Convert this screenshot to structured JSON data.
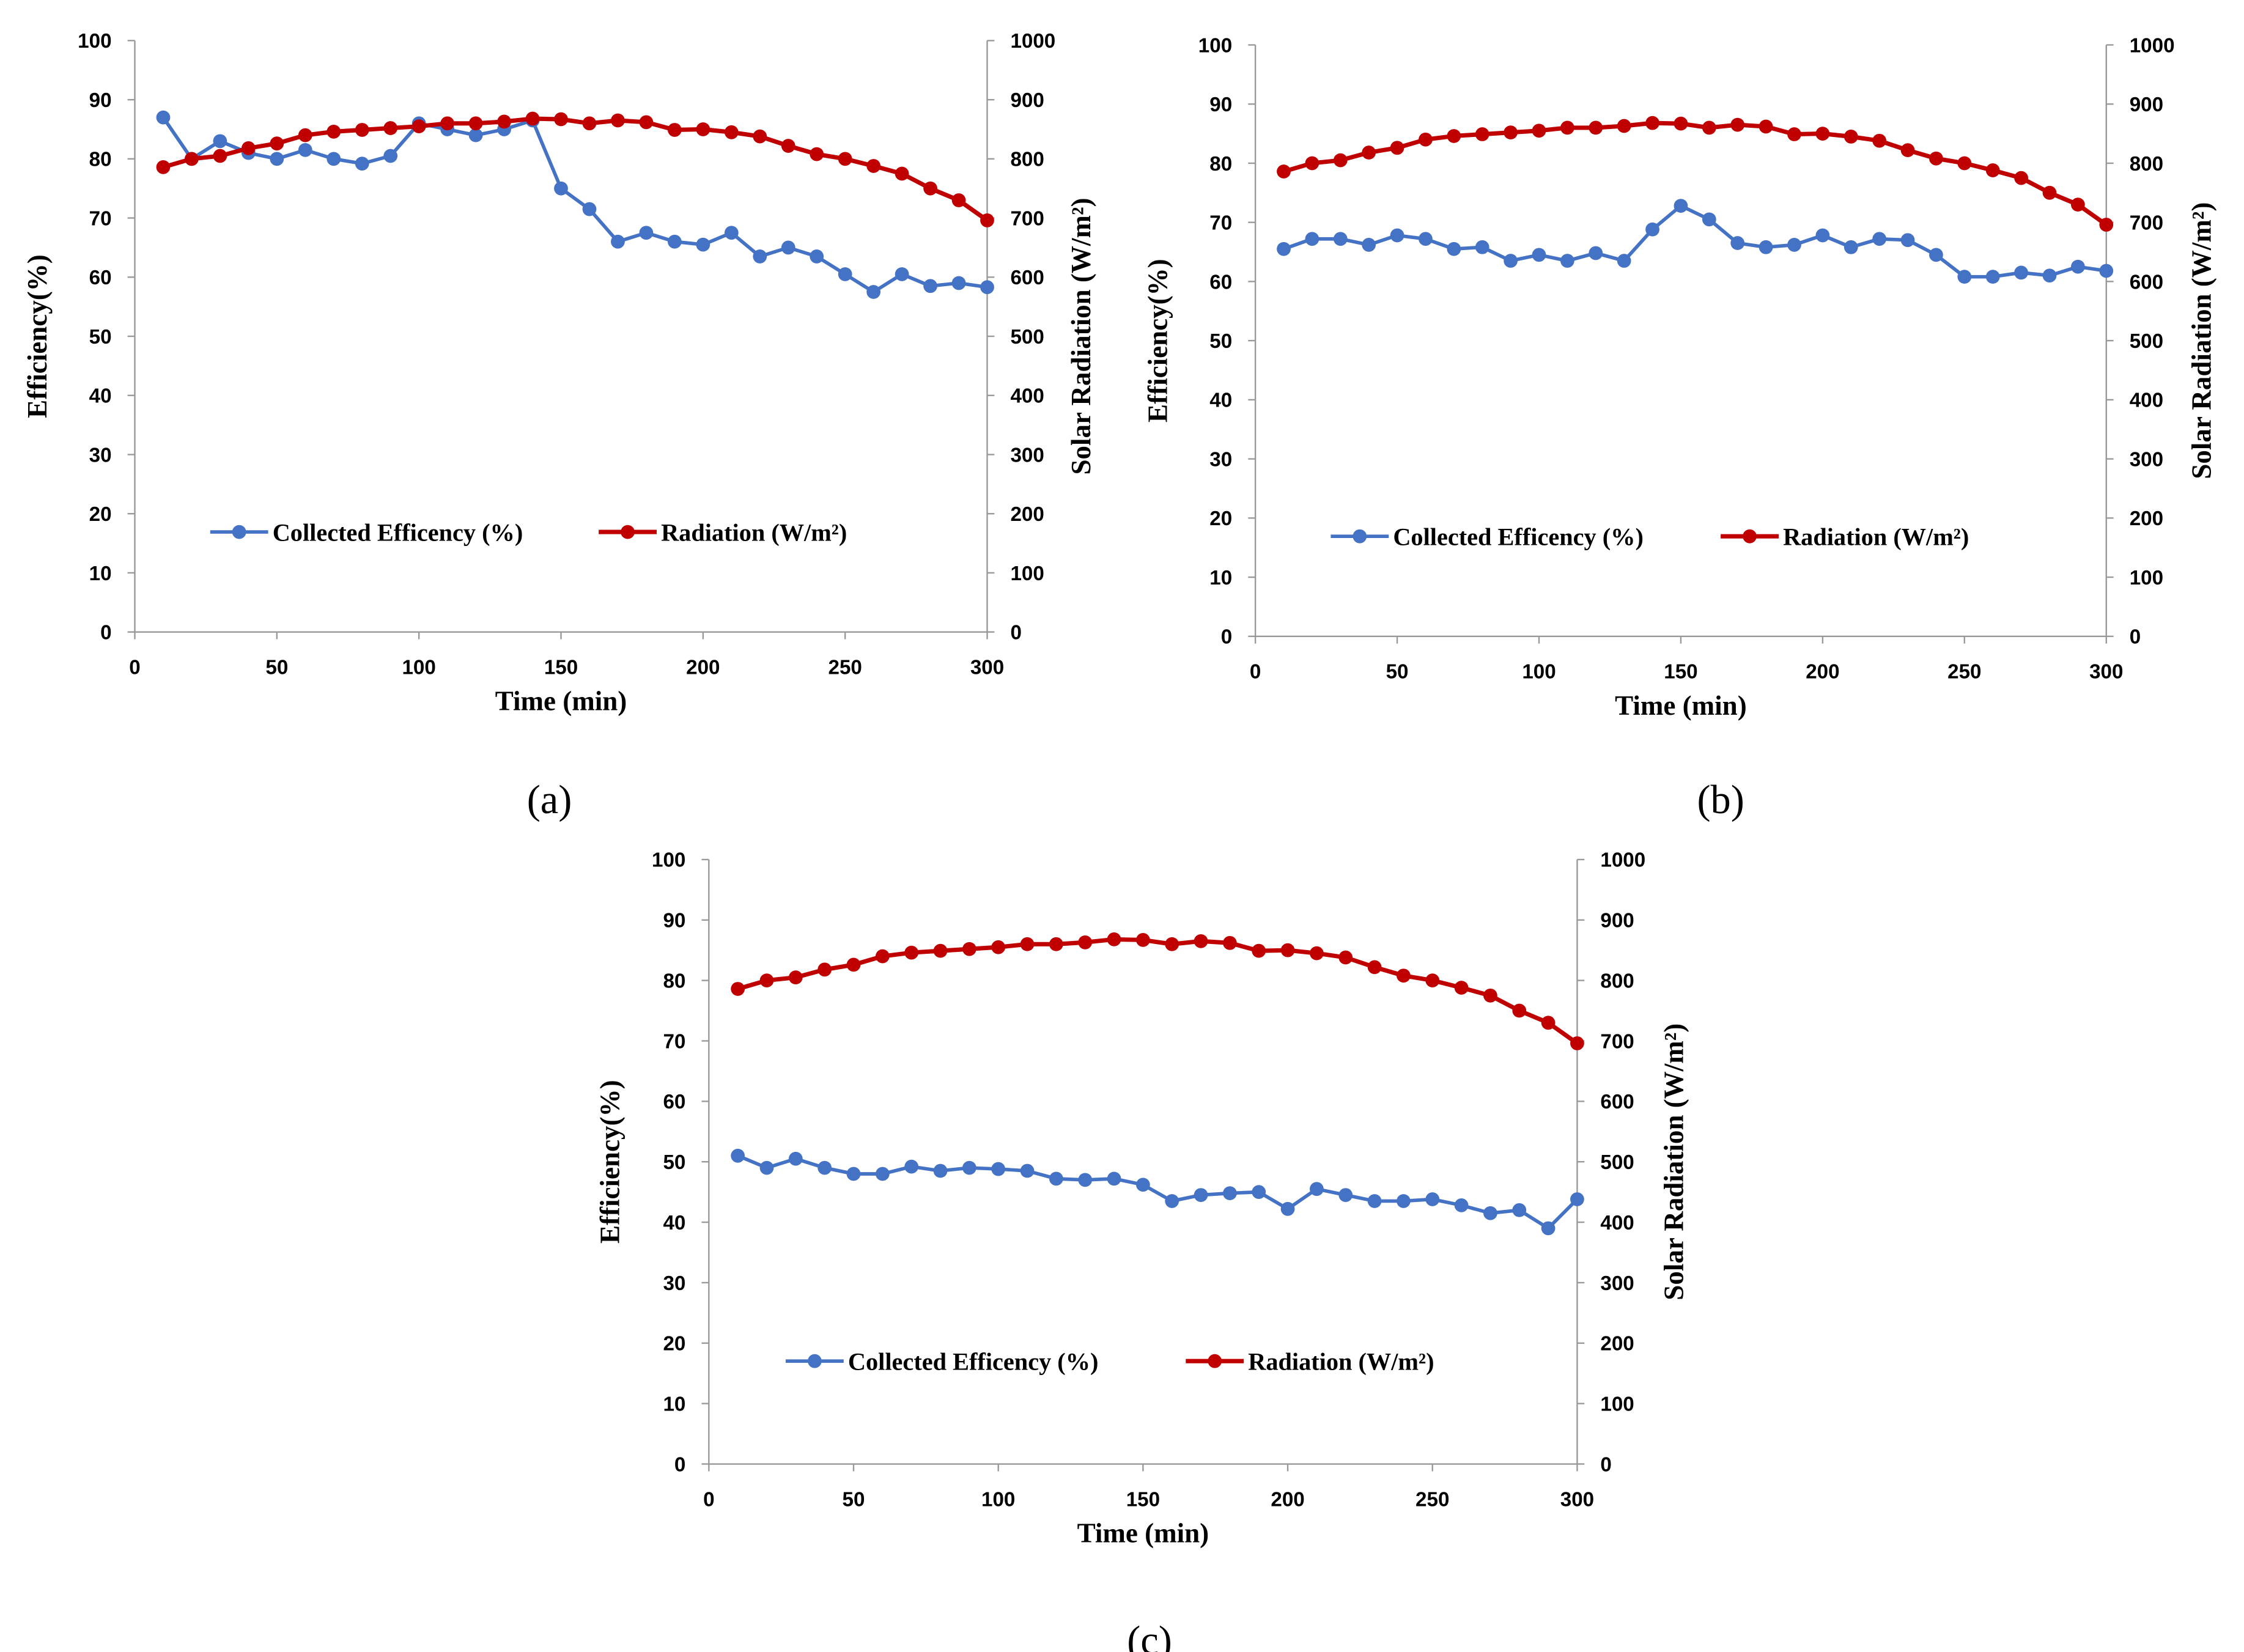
{
  "colors": {
    "efficiency": "#4472C4",
    "radiation": "#C00000",
    "axis": "#999999",
    "text": "#000000"
  },
  "chart_data": [
    {
      "type": "line",
      "panel_label": "(a)",
      "xlabel": "Time (min)",
      "ylabel_left": "Efficiency(%)",
      "ylabel_right": "Solar Radiation (W/m²)",
      "xlim": [
        0,
        300
      ],
      "ylim_left": [
        0,
        100
      ],
      "ylim_right": [
        0,
        1000
      ],
      "x_ticks": [
        "0",
        "50",
        "100",
        "150",
        "200",
        "250",
        "300"
      ],
      "y_left_ticks": [
        "0",
        "10",
        "20",
        "30",
        "40",
        "50",
        "60",
        "70",
        "80",
        "90",
        "100"
      ],
      "y_right_ticks": [
        "0",
        "100",
        "200",
        "300",
        "400",
        "500",
        "600",
        "700",
        "800",
        "900",
        "1000"
      ],
      "legend_position": "center-left",
      "x": [
        10,
        20,
        30,
        40,
        50,
        60,
        70,
        80,
        90,
        100,
        110,
        120,
        130,
        140,
        150,
        160,
        170,
        180,
        190,
        200,
        210,
        220,
        230,
        240,
        250,
        260,
        270,
        280,
        290,
        300
      ],
      "series": [
        {
          "name": "Collected Efficency (%)",
          "axis": "left",
          "values": [
            87,
            80,
            83,
            81,
            80,
            81.5,
            80,
            79.2,
            80.5,
            86,
            85,
            84,
            85,
            86.5,
            75,
            71.5,
            66,
            67.5,
            66,
            65.5,
            67.5,
            63.5,
            65,
            63.5,
            60.5,
            57.5,
            60.5,
            58.5,
            59,
            58.3
          ]
        },
        {
          "name": "Radiation (W/m²)",
          "axis": "right",
          "values": [
            786,
            800,
            805,
            818,
            826,
            840,
            846,
            849,
            852,
            855,
            860,
            860,
            863,
            868,
            867,
            860,
            865,
            862,
            849,
            850,
            845,
            838,
            822,
            808,
            800,
            788,
            775,
            750,
            730,
            696
          ]
        }
      ]
    },
    {
      "type": "line",
      "panel_label": "(b)",
      "xlabel": "Time (min)",
      "ylabel_left": "Efficiency(%)",
      "ylabel_right": "Solar Radiation (W/m²)",
      "xlim": [
        0,
        300
      ],
      "ylim_left": [
        0,
        100
      ],
      "ylim_right": [
        0,
        1000
      ],
      "x_ticks": [
        "0",
        "50",
        "100",
        "150",
        "200",
        "250",
        "300"
      ],
      "y_left_ticks": [
        "0",
        "10",
        "20",
        "30",
        "40",
        "50",
        "60",
        "70",
        "80",
        "90",
        "100"
      ],
      "y_right_ticks": [
        "0",
        "100",
        "200",
        "300",
        "400",
        "500",
        "600",
        "700",
        "800",
        "900",
        "1000"
      ],
      "legend_position": "center-left",
      "x": [
        10,
        20,
        30,
        40,
        50,
        60,
        70,
        80,
        90,
        100,
        110,
        120,
        130,
        140,
        150,
        160,
        170,
        180,
        190,
        200,
        210,
        220,
        230,
        240,
        250,
        260,
        270,
        280,
        290,
        300
      ],
      "series": [
        {
          "name": "Collected Efficency (%)",
          "axis": "left",
          "values": [
            65.5,
            67.2,
            67.2,
            66.2,
            67.8,
            67.2,
            65.5,
            65.8,
            63.5,
            64.5,
            63.5,
            64.8,
            63.5,
            68.8,
            72.8,
            70.5,
            66.5,
            65.8,
            66.2,
            67.8,
            65.8,
            67.2,
            67,
            64.5,
            60.8,
            60.8,
            61.5,
            61,
            62.5,
            61.8
          ]
        },
        {
          "name": "Radiation (W/m²)",
          "axis": "right",
          "values": [
            786,
            800,
            805,
            818,
            826,
            840,
            846,
            849,
            852,
            855,
            860,
            860,
            863,
            868,
            867,
            860,
            865,
            862,
            849,
            850,
            845,
            838,
            822,
            808,
            800,
            788,
            775,
            750,
            730,
            696
          ]
        }
      ]
    },
    {
      "type": "line",
      "panel_label": "(c)",
      "xlabel": "Time (min)",
      "ylabel_left": "Efficiency(%)",
      "ylabel_right": "Solar Radiation (W/m²)",
      "xlim": [
        0,
        300
      ],
      "ylim_left": [
        0,
        100
      ],
      "ylim_right": [
        0,
        1000
      ],
      "x_ticks": [
        "0",
        "50",
        "100",
        "150",
        "200",
        "250",
        "300"
      ],
      "y_left_ticks": [
        "0",
        "10",
        "20",
        "30",
        "40",
        "50",
        "60",
        "70",
        "80",
        "90",
        "100"
      ],
      "y_right_ticks": [
        "0",
        "100",
        "200",
        "300",
        "400",
        "500",
        "600",
        "700",
        "800",
        "900",
        "1000"
      ],
      "legend_position": "lower-left",
      "x": [
        10,
        20,
        30,
        40,
        50,
        60,
        70,
        80,
        90,
        100,
        110,
        120,
        130,
        140,
        150,
        160,
        170,
        180,
        190,
        200,
        210,
        220,
        230,
        240,
        250,
        260,
        270,
        280,
        290,
        300
      ],
      "series": [
        {
          "name": "Collected Efficency (%)",
          "axis": "left",
          "values": [
            51,
            49,
            50.5,
            49,
            48,
            48,
            49.2,
            48.5,
            49,
            48.8,
            48.5,
            47.2,
            47,
            47.2,
            46.2,
            43.5,
            44.5,
            44.8,
            45,
            42.2,
            45.5,
            44.5,
            43.5,
            43.5,
            43.8,
            42.8,
            41.5,
            42,
            39,
            43.8
          ]
        },
        {
          "name": "Radiation (W/m²)",
          "axis": "right",
          "values": [
            786,
            800,
            805,
            818,
            826,
            840,
            846,
            849,
            852,
            855,
            860,
            860,
            863,
            868,
            867,
            860,
            865,
            862,
            849,
            850,
            845,
            838,
            822,
            808,
            800,
            788,
            775,
            750,
            730,
            696
          ]
        }
      ]
    }
  ]
}
